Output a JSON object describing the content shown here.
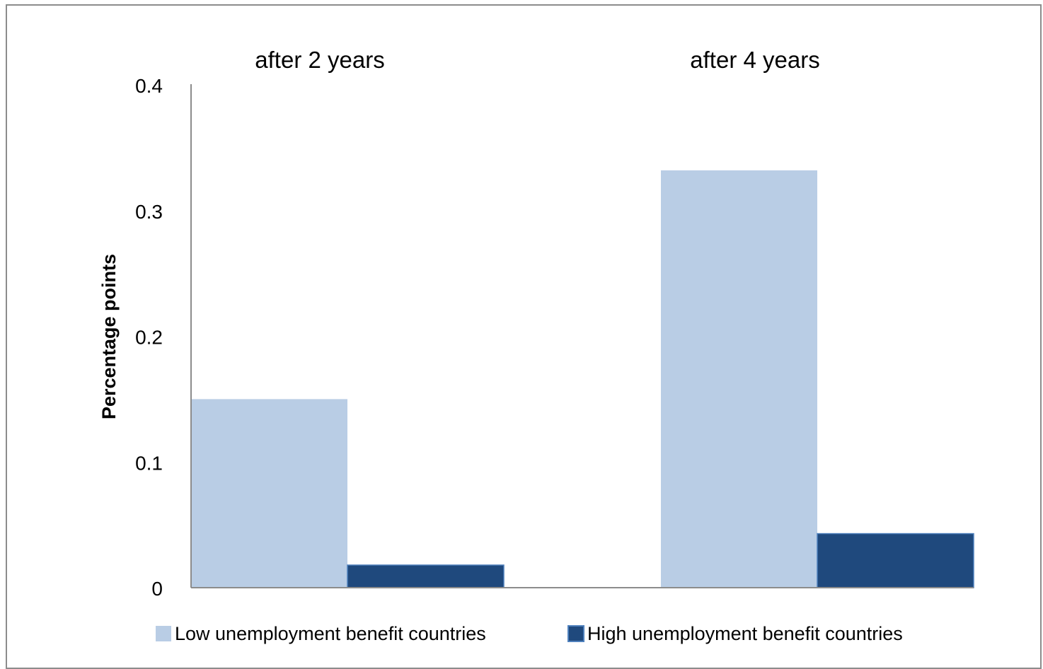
{
  "chart_data": {
    "type": "bar",
    "categories": [
      "after 2 years",
      "after 4 years"
    ],
    "series": [
      {
        "name": "Low unemployment benefit countries",
        "values": [
          0.15,
          0.332
        ],
        "color": "#b9cde5"
      },
      {
        "name": "High unemployment benefit countries",
        "values": [
          0.018,
          0.043
        ],
        "color": "#1f497d"
      }
    ],
    "ylabel": "Percentage points",
    "xlabel": "",
    "ylim": [
      0,
      0.4
    ],
    "yticks": [
      "0",
      "0.1",
      "0.2",
      "0.3",
      "0.4"
    ],
    "grid": false,
    "legend_position": "bottom"
  }
}
